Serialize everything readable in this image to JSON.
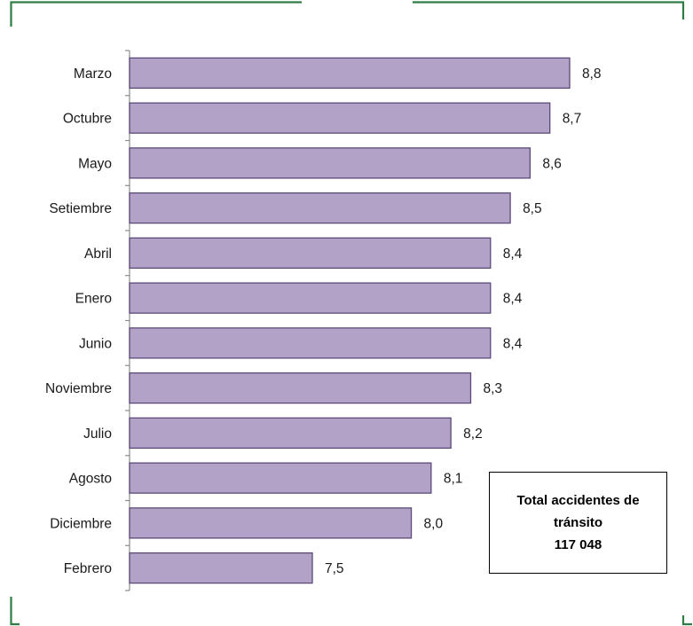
{
  "chart_data": {
    "type": "bar",
    "orientation": "horizontal",
    "categories": [
      "Marzo",
      "Octubre",
      "Mayo",
      "Setiembre",
      "Abril",
      "Enero",
      "Junio",
      "Noviembre",
      "Julio",
      "Agosto",
      "Diciembre",
      "Febrero"
    ],
    "values": [
      8.8,
      8.7,
      8.6,
      8.5,
      8.4,
      8.4,
      8.4,
      8.3,
      8.2,
      8.1,
      8.0,
      7.5
    ],
    "data_labels": [
      "8,8",
      "8,7",
      "8,6",
      "8,5",
      "8,4",
      "8,4",
      "8,4",
      "8,3",
      "8,2",
      "8,1",
      "8,0",
      "7,5"
    ],
    "title": "",
    "xlabel": "",
    "ylabel": "",
    "grid": false,
    "legend": "none",
    "colors": {
      "bar_fill": "#b3a2c8",
      "bar_stroke": "#5b4a78",
      "axis": "#8c8c8c",
      "frame": "#2e7d44"
    }
  },
  "total_box": {
    "line1": "Total accidentes de",
    "line2": "tránsito",
    "line3": "117 048"
  }
}
